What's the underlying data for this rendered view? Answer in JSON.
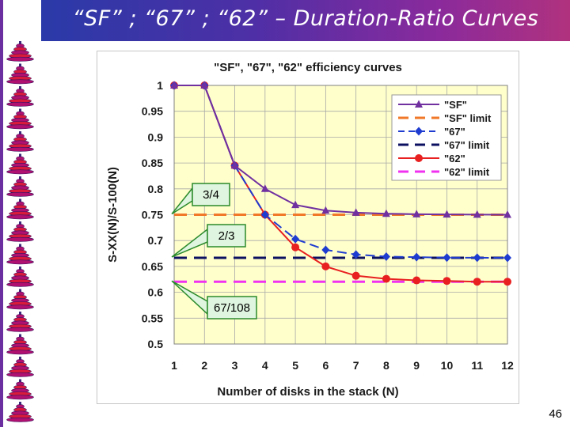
{
  "slide": {
    "title": "“SF” ; “67” ; “62” – Duration-Ratio Curves",
    "page_number": "46"
  },
  "colors": {
    "title_bar_start": "#2a3aa8",
    "title_bar_end": "#b0327e",
    "plot_bg": "#ffffcc",
    "sf": "#7030a0",
    "sf_limit": "#f07828",
    "c67": "#1f3cd0",
    "c67_limit": "#0c1060",
    "c62": "#e82020",
    "c62_limit": "#f032f0",
    "callout_fill": "#dff5df",
    "callout_border": "#2a8a2a"
  },
  "callouts": [
    {
      "text": "3/4"
    },
    {
      "text": "2/3"
    },
    {
      "text": "67/108"
    }
  ],
  "chart_data": {
    "type": "line",
    "title": "\"SF\", \"67\", \"62\" efficiency curves",
    "xlabel": "Number of disks in the stack (N)",
    "ylabel": "S-XX(N)/S-100(N)",
    "x": [
      1,
      2,
      3,
      4,
      5,
      6,
      7,
      8,
      9,
      10,
      11,
      12
    ],
    "xlim": [
      1,
      12
    ],
    "ylim": [
      0.5,
      1
    ],
    "y_ticks": [
      "0.5",
      "0.55",
      "0.6",
      "0.65",
      "0.7",
      "0.75",
      "0.8",
      "0.85",
      "0.9",
      "0.95",
      "1"
    ],
    "x_ticks": [
      "1",
      "2",
      "3",
      "4",
      "5",
      "6",
      "7",
      "8",
      "9",
      "10",
      "11",
      "12"
    ],
    "grid": true,
    "legend_position": "top-right",
    "series": [
      {
        "name": "\"SF\"",
        "kind": "data",
        "marker": "triangle",
        "color_key": "sf",
        "values": [
          1,
          1,
          0.845,
          0.8,
          0.769,
          0.758,
          0.754,
          0.752,
          0.751,
          0.7505,
          0.7502,
          0.75
        ]
      },
      {
        "name": "\"SF\" limit",
        "kind": "limit",
        "color_key": "sf_limit",
        "value": 0.75
      },
      {
        "name": "\"67\"",
        "kind": "data",
        "marker": "diamond",
        "color_key": "c67",
        "values": [
          1,
          1,
          0.845,
          0.75,
          0.703,
          0.682,
          0.673,
          0.669,
          0.668,
          0.667,
          0.6668,
          0.6667
        ]
      },
      {
        "name": "\"67\" limit",
        "kind": "limit",
        "color_key": "c67_limit",
        "value": 0.6667
      },
      {
        "name": "\"62\"",
        "kind": "data",
        "marker": "circle",
        "color_key": "c62",
        "values": [
          1,
          1,
          0.845,
          0.75,
          0.687,
          0.65,
          0.632,
          0.626,
          0.623,
          0.622,
          0.6205,
          0.6204
        ]
      },
      {
        "name": "\"62\" limit",
        "kind": "limit",
        "color_key": "c62_limit",
        "value": 0.6204
      }
    ]
  }
}
